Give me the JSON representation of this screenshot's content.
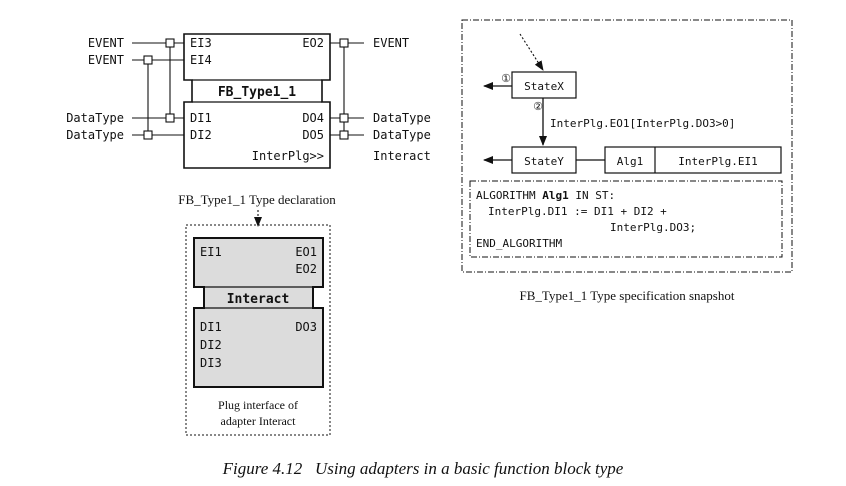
{
  "fb_block": {
    "name": "FB_Type1_1",
    "events_in": [
      "EI3",
      "EI4"
    ],
    "events_out": [
      "EO2"
    ],
    "data_in": [
      "DI1",
      "DI2"
    ],
    "data_out": [
      "DO4",
      "DO5"
    ],
    "plug": "InterPlg>>",
    "left_labels": [
      "EVENT",
      "EVENT",
      "DataType",
      "DataType"
    ],
    "right_labels": [
      "EVENT",
      "DataType",
      "DataType",
      "Interact"
    ],
    "caption": "FB_Type1_1 Type declaration"
  },
  "adapter": {
    "name": "Interact",
    "events_in": [
      "EI1"
    ],
    "events_out": [
      "EO1",
      "EO2"
    ],
    "data_in": [
      "DI1",
      "DI2",
      "DI3"
    ],
    "data_out": [
      "DO3"
    ],
    "caption_line1": "Plug interface of",
    "caption_line2": "adapter Interact"
  },
  "spec": {
    "state_x": "StateX",
    "state_y": "StateY",
    "marker1": "①",
    "marker2": "②",
    "transition": "InterPlg.EO1[InterPlg.DO3>0]",
    "action_alg": "Alg1",
    "action_event": "InterPlg.EI1",
    "algorithm": {
      "kw_start": "ALGORITHM",
      "name": "Alg1",
      "kw_lang": "IN ST:",
      "line2": "InterPlg.DI1 := DI1 + DI2 +",
      "line3": "InterPlg.DO3;",
      "line4": "END_ALGORITHM"
    },
    "caption": "FB_Type1_1 Type specification snapshot"
  },
  "figure_caption": "Figure 4.12   Using adapters in a basic function block type"
}
